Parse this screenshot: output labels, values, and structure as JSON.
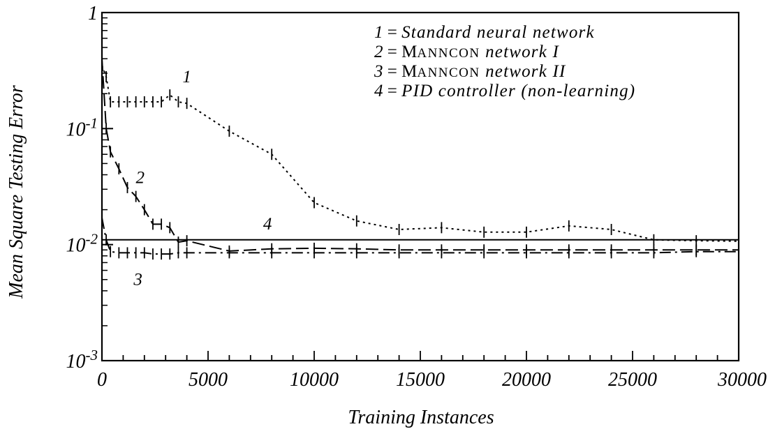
{
  "chart_data": {
    "type": "line",
    "xlabel": "Training Instances",
    "ylabel": "Mean Square Testing Error",
    "y_scale": "log",
    "xlim": [
      0,
      30000
    ],
    "ylim": [
      0.001,
      1
    ],
    "x_ticks": [
      {
        "value": 0,
        "label": "0"
      },
      {
        "value": 5000,
        "label": "5000"
      },
      {
        "value": 10000,
        "label": "10000"
      },
      {
        "value": 15000,
        "label": "15000"
      },
      {
        "value": 20000,
        "label": "20000"
      },
      {
        "value": 25000,
        "label": "25000"
      },
      {
        "value": 30000,
        "label": "30000"
      }
    ],
    "y_ticks": [
      {
        "value": 1,
        "base": "1",
        "exp": ""
      },
      {
        "value": 0.1,
        "base": "10",
        "exp": "-1"
      },
      {
        "value": 0.01,
        "base": "10",
        "exp": "-2"
      },
      {
        "value": 0.001,
        "base": "10",
        "exp": "-3"
      }
    ],
    "legend": {
      "placement": "top-right",
      "entries": [
        {
          "num": "1",
          "eq": " = ",
          "parts": [
            {
              "text": "Standard neural network",
              "style": "italic"
            }
          ]
        },
        {
          "num": "2",
          "eq": " = ",
          "parts": [
            {
              "text": "M",
              "style": "roman"
            },
            {
              "text": "ANNCON",
              "style": "smallcaps"
            },
            {
              "text": " network I",
              "style": "italic"
            }
          ]
        },
        {
          "num": "3",
          "eq": " = ",
          "parts": [
            {
              "text": "M",
              "style": "roman"
            },
            {
              "text": "ANNCON",
              "style": "smallcaps"
            },
            {
              "text": " network II",
              "style": "italic"
            }
          ]
        },
        {
          "num": "4",
          "eq": " = ",
          "parts": [
            {
              "text": "PID controller (non-learning)",
              "style": "italic"
            }
          ]
        }
      ]
    },
    "series": [
      {
        "label": "1",
        "dash": "dotted",
        "x": [
          0,
          200,
          400,
          800,
          1200,
          1600,
          2000,
          2400,
          2800,
          3200,
          3600,
          4000,
          6000,
          8000,
          10000,
          12000,
          14000,
          16000,
          18000,
          20000,
          22000,
          24000,
          26000,
          28000,
          30000
        ],
        "y": [
          0.35,
          0.28,
          0.17,
          0.17,
          0.17,
          0.17,
          0.17,
          0.17,
          0.17,
          0.195,
          0.17,
          0.165,
          0.095,
          0.06,
          0.023,
          0.016,
          0.0135,
          0.014,
          0.0128,
          0.0128,
          0.0145,
          0.0135,
          0.011,
          0.0108,
          0.0107
        ]
      },
      {
        "label": "2",
        "dash": "long-dash",
        "x": [
          0,
          200,
          400,
          800,
          1200,
          1600,
          2000,
          2400,
          2800,
          3200,
          3600,
          4000,
          6000,
          8000,
          10000,
          12000,
          14000,
          16000,
          18000,
          20000,
          22000,
          24000,
          26000,
          28000,
          30000
        ],
        "y": [
          0.4,
          0.1,
          0.063,
          0.045,
          0.031,
          0.026,
          0.02,
          0.015,
          0.015,
          0.014,
          0.0105,
          0.0108,
          0.0088,
          0.0092,
          0.0093,
          0.0092,
          0.009,
          0.009,
          0.009,
          0.009,
          0.009,
          0.009,
          0.009,
          0.009,
          0.009
        ]
      },
      {
        "label": "3",
        "dash": "dash-dot",
        "x": [
          0,
          200,
          400,
          800,
          1200,
          1600,
          2000,
          2400,
          2800,
          3200,
          3600,
          4000,
          6000,
          8000,
          10000,
          12000,
          14000,
          16000,
          18000,
          20000,
          22000,
          24000,
          26000,
          28000,
          30000
        ],
        "y": [
          0.017,
          0.011,
          0.0087,
          0.0085,
          0.0085,
          0.0085,
          0.0085,
          0.0083,
          0.0083,
          0.0083,
          0.0085,
          0.0085,
          0.0085,
          0.0085,
          0.0085,
          0.0085,
          0.0085,
          0.0085,
          0.0085,
          0.0085,
          0.0085,
          0.0085,
          0.0085,
          0.0087,
          0.0087
        ]
      },
      {
        "label": "4",
        "dash": "solid",
        "x": [
          0,
          30000
        ],
        "y": [
          0.011,
          0.011
        ]
      }
    ],
    "curve_labels": [
      {
        "text": "1",
        "x": 4000,
        "y": 0.25
      },
      {
        "text": "2",
        "x": 1800,
        "y": 0.034
      },
      {
        "text": "3",
        "x": 1700,
        "y": 0.0045
      },
      {
        "text": "4",
        "x": 7800,
        "y": 0.0135
      }
    ]
  }
}
